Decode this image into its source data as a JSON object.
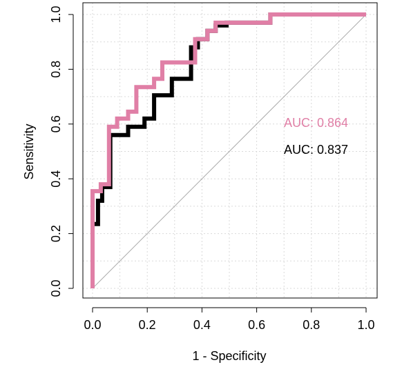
{
  "chart_data": {
    "type": "line",
    "title": "",
    "xlabel": "1 - Specificity",
    "ylabel": "Sensitivity",
    "xlim": [
      0,
      1
    ],
    "ylim": [
      0,
      1
    ],
    "x_ticks": [
      "0.0",
      "0.2",
      "0.4",
      "0.6",
      "0.8",
      "1.0"
    ],
    "y_ticks": [
      "0.0",
      "0.2",
      "0.4",
      "0.6",
      "0.8",
      "1.0"
    ],
    "grid": true,
    "reference_line": {
      "x": [
        0,
        1
      ],
      "y": [
        0,
        1
      ],
      "color": "#aaaaaa"
    },
    "series": [
      {
        "color": "#000000",
        "auc_label": "AUC: 0.837",
        "x": [
          0,
          0,
          0.02,
          0.02,
          0.035,
          0.035,
          0.065,
          0.065,
          0.13,
          0.13,
          0.19,
          0.19,
          0.225,
          0.225,
          0.29,
          0.29,
          0.36,
          0.36,
          0.385,
          0.385,
          0.42,
          0.42,
          0.45,
          0.45,
          0.49,
          0.49,
          0.65,
          0.65,
          1.0
        ],
        "y": [
          0,
          0.235,
          0.235,
          0.32,
          0.32,
          0.37,
          0.37,
          0.56,
          0.56,
          0.59,
          0.59,
          0.62,
          0.62,
          0.705,
          0.705,
          0.765,
          0.765,
          0.88,
          0.88,
          0.91,
          0.91,
          0.94,
          0.94,
          0.96,
          0.96,
          0.97,
          0.97,
          1.0,
          1.0
        ]
      },
      {
        "color": "#e07fa6",
        "auc_label": "AUC: 0.864",
        "x": [
          0,
          0,
          0.03,
          0.03,
          0.06,
          0.06,
          0.09,
          0.09,
          0.13,
          0.13,
          0.16,
          0.16,
          0.225,
          0.225,
          0.255,
          0.255,
          0.375,
          0.375,
          0.42,
          0.42,
          0.45,
          0.45,
          0.65,
          0.65,
          1.0
        ],
        "y": [
          0,
          0.355,
          0.355,
          0.38,
          0.38,
          0.59,
          0.59,
          0.62,
          0.62,
          0.645,
          0.645,
          0.735,
          0.735,
          0.765,
          0.765,
          0.825,
          0.825,
          0.91,
          0.91,
          0.94,
          0.94,
          0.97,
          0.97,
          1.0,
          1.0
        ]
      }
    ]
  }
}
